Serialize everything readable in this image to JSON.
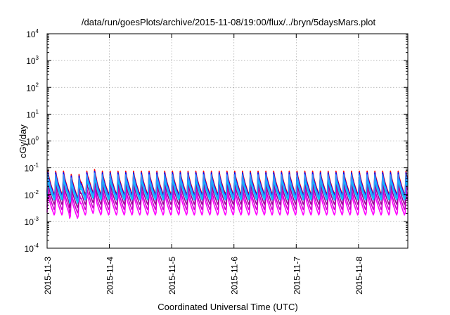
{
  "chart_data": {
    "type": "line",
    "title": "/data/run/goesPlots/archive/2015-11-08/19:00/flux/../bryn/5daysMars.plot",
    "xlabel": "Coordinated Universal Time (UTC)",
    "ylabel": "cGy/day",
    "yscale": "log",
    "ylim": [
      0.0001,
      10000
    ],
    "ytick_values": [
      0.0001,
      0.001,
      0.01,
      0.1,
      1,
      10,
      100,
      1000,
      10000
    ],
    "ytick_labels": [
      {
        "base": "10",
        "exp": "-4"
      },
      {
        "base": "10",
        "exp": "-3"
      },
      {
        "base": "10",
        "exp": "-2"
      },
      {
        "base": "10",
        "exp": "-1"
      },
      {
        "base": "10",
        "exp": "0"
      },
      {
        "base": "10",
        "exp": "1"
      },
      {
        "base": "10",
        "exp": "2"
      },
      {
        "base": "10",
        "exp": "3"
      },
      {
        "base": "10",
        "exp": "4"
      }
    ],
    "xlim": [
      "2015-11-03",
      "2015-11-08T19:00"
    ],
    "xtick_labels": [
      "2015-11-3",
      "2015-11-4",
      "2015-11-5",
      "2015-11-6",
      "2015-11-7",
      "2015-11-8"
    ],
    "grid": true,
    "cycles_per_day": 8,
    "series": [
      {
        "color": "#ff00ff",
        "peak": 0.012,
        "trough": 0.0015
      },
      {
        "color": "#cc00cc",
        "peak": 0.018,
        "trough": 0.0024
      },
      {
        "color": "#990099",
        "peak": 0.028,
        "trough": 0.0038
      },
      {
        "color": "#ff0000",
        "peak": 0.075,
        "trough": 0.009
      },
      {
        "color": "#0000ff",
        "peak": 0.065,
        "trough": 0.008
      },
      {
        "color": "#00bfbf",
        "peak": 0.048,
        "trough": 0.0065
      },
      {
        "color": "#00c8ff",
        "peak": 0.04,
        "trough": 0.0055
      },
      {
        "color": "#3399ff",
        "peak": 0.055,
        "trough": 0.007
      }
    ]
  }
}
